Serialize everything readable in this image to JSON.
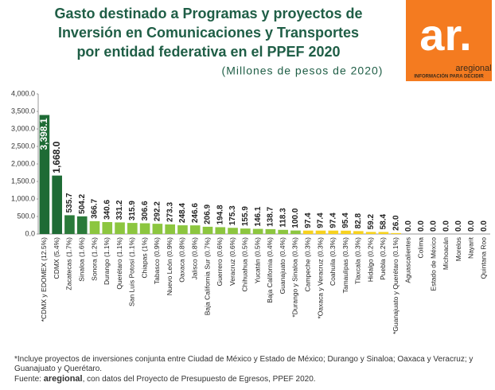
{
  "chart_data": {
    "type": "bar",
    "title_lines": [
      "Gasto destinado a Programas y proyectos de",
      "Inversión en Comunicaciones y Transportes",
      "por entidad federativa en el PPEF 2020"
    ],
    "subtitle": "(Millones de pesos de 2020)",
    "categories": [
      "*CDMX y EDOMEX (12.5%)",
      "CDMX (5.4%)",
      "Zacatecas (1.7%)",
      "Sinaloa (1.6%)",
      "Sonora (1.2%)",
      "Durango (1.1%)",
      "Querétaro (1.1%)",
      "San Luis Potosí (1.1%)",
      "Chiapas (1%)",
      "Tabasco (0.9%)",
      "Nuevo León (0.9%)",
      "Oaxaca (0.8%)",
      "Jalisco (0.8%)",
      "Baja California Sur (0.7%)",
      "Guerrero (0.6%)",
      "Veracruz (0.6%)",
      "Chihuahua (0.5%)",
      "Yucatán (0.5%)",
      "Baja California (0.4%)",
      "Guanajuato (0.4%)",
      "*Durango y Sinaloa (0.3%)",
      "Campeche (0.3%)",
      "*Oaxaca y Veracruz (0.3%)",
      "Coahuila (0.3%)",
      "Tamaulipas (0.3%)",
      "Tlaxcala (0.3%)",
      "Hidalgo (0.2%)",
      "Puebla (0.2%)",
      "*Guanajuato y Querétaro (0.1%)",
      "Aguascalientes",
      "Colima",
      "Estado de México",
      "Michoacán",
      "Morelos",
      "Nayarit",
      "Quintana Roo"
    ],
    "values": [
      3398.1,
      1668.0,
      535.7,
      504.2,
      366.7,
      340.6,
      331.2,
      315.9,
      306.6,
      292.2,
      273.3,
      248.4,
      246.6,
      206.9,
      194.8,
      175.3,
      155.9,
      146.1,
      138.7,
      118.3,
      100.0,
      97.4,
      97.4,
      97.4,
      95.4,
      82.8,
      59.2,
      58.4,
      26.0,
      0,
      0,
      0,
      0,
      0,
      0,
      0
    ],
    "value_labels": [
      "3,398.1",
      "1,668.0",
      "535.7",
      "504.2",
      "366.7",
      "340.6",
      "331.2",
      "315.9",
      "306.6",
      "292.2",
      "273.3",
      "248.4",
      "246.6",
      "206.9",
      "194.8",
      "175.3",
      "155.9",
      "146.1",
      "138.7",
      "118.3",
      "100.0",
      "97.4",
      "97.4",
      "97.4",
      "95.4",
      "82.8",
      "59.2",
      "58.4",
      "26.0",
      "0.0",
      "0.0",
      "0.0",
      "0.0",
      "0.0",
      "0.0",
      "0.0"
    ],
    "colors": [
      "#1e6b35",
      "#1e6b35",
      "#2a7a3a",
      "#2a7a3a",
      "#8cc63f",
      "#8cc63f",
      "#8cc63f",
      "#8cc63f",
      "#8cc63f",
      "#8cc63f",
      "#8cc63f",
      "#8cc63f",
      "#8cc63f",
      "#8cc63f",
      "#8cc63f",
      "#8cc63f",
      "#8cc63f",
      "#8cc63f",
      "#8cc63f",
      "#8cc63f",
      "#8cc63f",
      "#f7d21e",
      "#f7d21e",
      "#f7d21e",
      "#f7d21e",
      "#f7d21e",
      "#f7d21e",
      "#f7d21e",
      "#f7d21e",
      "#f7d21e",
      "#f7d21e",
      "#f7d21e",
      "#f7d21e",
      "#f7d21e",
      "#f7d21e",
      "#f7d21e"
    ],
    "ylim": [
      0,
      4000
    ],
    "yticks": [
      {
        "value": 0,
        "label": "0.0"
      },
      {
        "value": 500,
        "label": "500.0"
      },
      {
        "value": 1000,
        "label": "1,000.0"
      },
      {
        "value": 1500,
        "label": "1,500.0"
      },
      {
        "value": 2000,
        "label": "2,000.0"
      },
      {
        "value": 2500,
        "label": "2,500.0"
      },
      {
        "value": 3000,
        "label": "3,000.0"
      },
      {
        "value": 3500,
        "label": "3,500.0"
      },
      {
        "value": 4000,
        "label": "4,000.0"
      }
    ],
    "logo": {
      "mark": "ar.",
      "brand": "aregional",
      "tagline": "INFORMACIÓN PARA DECIDIR"
    },
    "footnote": "*Incluye proyectos de inversiones conjunta entre Ciudad de México y Estado de México; Durango y Sinaloa; Oaxaca y Veracruz; y Guanajuato y Querétaro.",
    "source_prefix": "Fuente:",
    "source_brand": "aregional",
    "source_rest": ", con datos del Proyecto de Presupuesto de Egresos, PPEF 2020."
  }
}
